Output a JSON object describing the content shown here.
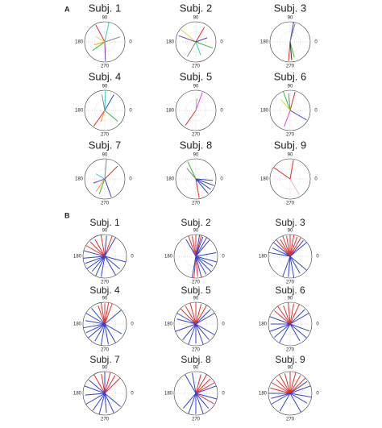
{
  "panel_labels": [
    "A",
    "B"
  ],
  "chart_data": [
    {
      "type": "polar",
      "title": "Subj. 1",
      "thetaticks": [
        90,
        180,
        270,
        0
      ],
      "rlim": [
        0,
        1
      ],
      "series": [
        {
          "color": "#33cccc",
          "angles": [
            78
          ],
          "lengths": [
            1.0
          ]
        },
        {
          "color": "#e03030",
          "angles": [
            118
          ],
          "lengths": [
            0.95
          ]
        },
        {
          "color": "#888888",
          "angles": [
            18
          ],
          "lengths": [
            0.8
          ]
        },
        {
          "color": "#7a3fb0",
          "angles": [
            272
          ],
          "lengths": [
            0.95
          ]
        },
        {
          "color": "#33bb33",
          "angles": [
            215
          ],
          "lengths": [
            0.75
          ]
        },
        {
          "color": "#ff9900",
          "angles": [
            195
          ],
          "lengths": [
            0.55
          ]
        },
        {
          "color": "#dddd33",
          "angles": [
            150
          ],
          "lengths": [
            0.5
          ]
        }
      ]
    },
    {
      "type": "polar",
      "title": "Subj. 2",
      "thetaticks": [
        90,
        180,
        270,
        0
      ],
      "rlim": [
        0,
        1
      ],
      "series": [
        {
          "color": "#dddd33",
          "angles": [
            140
          ],
          "lengths": [
            0.95
          ]
        },
        {
          "color": "#7a3fb0",
          "angles": [
            160
          ],
          "lengths": [
            0.9
          ]
        },
        {
          "color": "#e03030",
          "angles": [
            60
          ],
          "lengths": [
            0.85
          ]
        },
        {
          "color": "#33bb33",
          "angles": [
            340
          ],
          "lengths": [
            0.9
          ]
        },
        {
          "color": "#888888",
          "angles": [
            240
          ],
          "lengths": [
            0.85
          ]
        },
        {
          "color": "#33cccc",
          "angles": [
            290
          ],
          "lengths": [
            0.7
          ]
        },
        {
          "color": "#3344cc",
          "angles": [
            20
          ],
          "lengths": [
            0.6
          ]
        }
      ]
    },
    {
      "type": "polar",
      "title": "Subj. 3",
      "thetaticks": [
        90,
        180,
        270,
        0
      ],
      "rlim": [
        0,
        1
      ],
      "series": [
        {
          "color": "#3344cc",
          "angles": [
            80
          ],
          "lengths": [
            1.0
          ]
        },
        {
          "color": "#888888",
          "angles": [
            75
          ],
          "lengths": [
            0.95
          ]
        },
        {
          "color": "#e03030",
          "angles": [
            265
          ],
          "lengths": [
            0.95
          ]
        },
        {
          "color": "#33bb33",
          "angles": [
            285
          ],
          "lengths": [
            0.8
          ]
        },
        {
          "color": "#333333",
          "angles": [
            275
          ],
          "lengths": [
            0.9
          ]
        }
      ]
    },
    {
      "type": "polar",
      "title": "Subj. 4",
      "thetaticks": [
        90,
        180,
        270,
        0
      ],
      "rlim": [
        0,
        1
      ],
      "series": [
        {
          "color": "#33cccc",
          "angles": [
            88
          ],
          "lengths": [
            1.0
          ]
        },
        {
          "color": "#3344cc",
          "angles": [
            60
          ],
          "lengths": [
            0.9
          ]
        },
        {
          "color": "#888888",
          "angles": [
            100
          ],
          "lengths": [
            0.8
          ]
        },
        {
          "color": "#e03030",
          "angles": [
            235
          ],
          "lengths": [
            0.95
          ]
        },
        {
          "color": "#33bb33",
          "angles": [
            320
          ],
          "lengths": [
            0.85
          ]
        },
        {
          "color": "#ff9900",
          "angles": [
            250
          ],
          "lengths": [
            0.6
          ]
        }
      ]
    },
    {
      "type": "polar",
      "title": "Subj. 5",
      "thetaticks": [
        90,
        180,
        270,
        0
      ],
      "rlim": [
        0,
        1
      ],
      "series": [
        {
          "color": "#e040e0",
          "angles": [
            70
          ],
          "lengths": [
            0.95
          ]
        },
        {
          "color": "#e03030",
          "angles": [
            235
          ],
          "lengths": [
            0.9
          ]
        },
        {
          "color": "#aaaaaa",
          "angles": [
            85
          ],
          "lengths": [
            0.6
          ]
        }
      ]
    },
    {
      "type": "polar",
      "title": "Subj. 6",
      "thetaticks": [
        90,
        180,
        270,
        0
      ],
      "rlim": [
        0,
        1
      ],
      "series": [
        {
          "color": "#33bb33",
          "angles": [
            110
          ],
          "lengths": [
            1.0
          ]
        },
        {
          "color": "#e03030",
          "angles": [
            75
          ],
          "lengths": [
            0.95
          ]
        },
        {
          "color": "#888888",
          "angles": [
            95
          ],
          "lengths": [
            0.85
          ]
        },
        {
          "color": "#3344cc",
          "angles": [
            330
          ],
          "lengths": [
            0.95
          ]
        },
        {
          "color": "#e040e0",
          "angles": [
            250
          ],
          "lengths": [
            0.85
          ]
        },
        {
          "color": "#dddd33",
          "angles": [
            130
          ],
          "lengths": [
            0.7
          ]
        }
      ]
    },
    {
      "type": "polar",
      "title": "Subj. 7",
      "thetaticks": [
        90,
        180,
        270,
        0
      ],
      "rlim": [
        0,
        1
      ],
      "series": [
        {
          "color": "#888888",
          "angles": [
            85
          ],
          "lengths": [
            1.0
          ]
        },
        {
          "color": "#e03030",
          "angles": [
            45
          ],
          "lengths": [
            0.9
          ]
        },
        {
          "color": "#3344cc",
          "angles": [
            290
          ],
          "lengths": [
            0.95
          ]
        },
        {
          "color": "#33bb33",
          "angles": [
            250
          ],
          "lengths": [
            0.8
          ]
        },
        {
          "color": "#ff9900",
          "angles": [
            235
          ],
          "lengths": [
            0.75
          ]
        },
        {
          "color": "#7a3fb0",
          "angles": [
            200
          ],
          "lengths": [
            0.6
          ]
        },
        {
          "color": "#33cccc",
          "angles": [
            150
          ],
          "lengths": [
            0.5
          ]
        }
      ]
    },
    {
      "type": "polar",
      "title": "Subj. 8",
      "thetaticks": [
        90,
        180,
        270,
        0
      ],
      "rlim": [
        0,
        1
      ],
      "series": [
        {
          "color": "#33bb33",
          "angles": [
            115
          ],
          "lengths": [
            0.95
          ]
        },
        {
          "color": "#e03030",
          "angles": [
            280
          ],
          "lengths": [
            0.95
          ]
        },
        {
          "color": "#3344cc",
          "angles": [
            310,
            325,
            340,
            355
          ],
          "lengths": [
            0.95,
            0.9,
            0.95,
            0.85
          ]
        },
        {
          "color": "#888888",
          "angles": [
            130
          ],
          "lengths": [
            0.7
          ]
        }
      ]
    },
    {
      "type": "polar",
      "title": "Subj. 9",
      "thetaticks": [
        90,
        180,
        270,
        0
      ],
      "rlim": [
        0,
        1
      ],
      "series": [
        {
          "color": "#e03030",
          "angles": [
            145,
            80
          ],
          "lengths": [
            1.0,
            0.95
          ]
        },
        {
          "color": "#f0b0d0",
          "angles": [
            300
          ],
          "lengths": [
            0.9
          ]
        }
      ]
    },
    {
      "type": "polar",
      "title": "Subj. 1",
      "thetaticks": [
        90,
        180,
        270,
        0
      ],
      "rlim": [
        0,
        1
      ],
      "series": [
        {
          "color": "#e03030",
          "angles": [
            70,
            100,
            120,
            135,
            150
          ],
          "lengths": [
            1.0,
            1.0,
            0.9,
            0.95,
            1.0
          ]
        },
        {
          "color": "#3344cc",
          "angles": [
            60,
            85,
            165,
            185,
            200,
            215,
            230,
            245,
            260,
            300,
            320,
            345
          ],
          "lengths": [
            1.0,
            0.95,
            1.0,
            1.0,
            0.95,
            1.0,
            0.9,
            1.0,
            0.95,
            1.0,
            0.9,
            1.0
          ]
        }
      ]
    },
    {
      "type": "polar",
      "title": "Subj. 2",
      "thetaticks": [
        90,
        180,
        270,
        0
      ],
      "rlim": [
        0,
        1
      ],
      "series": [
        {
          "color": "#e03030",
          "angles": [
            75,
            90,
            100,
            110,
            265,
            275
          ],
          "lengths": [
            1.0,
            1.0,
            0.95,
            1.0,
            1.0,
            0.95
          ]
        },
        {
          "color": "#3344cc",
          "angles": [
            50,
            60,
            70,
            80,
            120,
            260,
            285,
            300,
            315,
            330,
            345,
            10
          ],
          "lengths": [
            1.0,
            1.0,
            0.95,
            1.0,
            0.9,
            1.0,
            1.0,
            0.95,
            1.0,
            0.9,
            1.0,
            0.95
          ]
        }
      ]
    },
    {
      "type": "polar",
      "title": "Subj. 3",
      "thetaticks": [
        90,
        180,
        270,
        0
      ],
      "rlim": [
        0,
        1
      ],
      "series": [
        {
          "color": "#e03030",
          "angles": [
            60,
            70,
            80,
            90,
            100,
            110,
            120,
            130
          ],
          "lengths": [
            1.0,
            0.95,
            1.0,
            1.0,
            0.95,
            1.0,
            0.9,
            1.0
          ]
        },
        {
          "color": "#3344cc",
          "angles": [
            40,
            50,
            140,
            155,
            170,
            250,
            265,
            280,
            300,
            320
          ],
          "lengths": [
            1.0,
            0.95,
            1.0,
            0.9,
            1.0,
            1.0,
            0.95,
            1.0,
            0.9,
            1.0
          ]
        }
      ]
    },
    {
      "type": "polar",
      "title": "Subj. 4",
      "thetaticks": [
        90,
        180,
        270,
        0
      ],
      "rlim": [
        0,
        1
      ],
      "series": [
        {
          "color": "#e03030",
          "angles": [
            70,
            80,
            90,
            100,
            110
          ],
          "lengths": [
            1.0,
            1.0,
            0.95,
            1.0,
            0.9
          ]
        },
        {
          "color": "#3344cc",
          "angles": [
            40,
            130,
            150,
            170,
            190,
            205,
            220,
            240,
            260,
            280,
            300,
            330
          ],
          "lengths": [
            1.0,
            0.95,
            1.0,
            0.9,
            1.0,
            0.95,
            1.0,
            0.9,
            1.0,
            0.95,
            1.0,
            0.9
          ]
        }
      ]
    },
    {
      "type": "polar",
      "title": "Subj. 5",
      "thetaticks": [
        90,
        180,
        270,
        0
      ],
      "rlim": [
        0,
        1
      ],
      "series": [
        {
          "color": "#e03030",
          "angles": [
            60,
            75,
            90,
            105,
            120,
            135
          ],
          "lengths": [
            1.0,
            0.95,
            1.0,
            1.0,
            0.95,
            1.0
          ]
        },
        {
          "color": "#3344cc",
          "angles": [
            30,
            45,
            150,
            165,
            200,
            230,
            250,
            270,
            290,
            310,
            330
          ],
          "lengths": [
            1.0,
            0.95,
            1.0,
            0.9,
            1.0,
            0.95,
            1.0,
            0.9,
            1.0,
            0.95,
            1.0
          ]
        }
      ]
    },
    {
      "type": "polar",
      "title": "Subj. 6",
      "thetaticks": [
        90,
        180,
        270,
        0
      ],
      "rlim": [
        0,
        1
      ],
      "series": [
        {
          "color": "#e03030",
          "angles": [
            65,
            80,
            95,
            110,
            125,
            140
          ],
          "lengths": [
            1.0,
            0.95,
            1.0,
            0.9,
            1.0,
            0.95
          ]
        },
        {
          "color": "#3344cc",
          "angles": [
            30,
            45,
            160,
            180,
            200,
            220,
            240,
            300,
            320,
            340
          ],
          "lengths": [
            1.0,
            0.95,
            1.0,
            0.9,
            1.0,
            0.95,
            1.0,
            0.9,
            1.0,
            0.95
          ]
        }
      ]
    },
    {
      "type": "polar",
      "title": "Subj. 7",
      "thetaticks": [
        90,
        180,
        270,
        0
      ],
      "rlim": [
        0,
        1
      ],
      "series": [
        {
          "color": "#e03030",
          "angles": [
            45,
            60,
            75,
            100,
            120
          ],
          "lengths": [
            1.0,
            0.95,
            1.0,
            0.9,
            1.0
          ]
        },
        {
          "color": "#3344cc",
          "angles": [
            90,
            140,
            160,
            185,
            210,
            235,
            255,
            275,
            295,
            320
          ],
          "lengths": [
            1.0,
            0.95,
            1.0,
            0.9,
            1.0,
            0.95,
            1.0,
            0.9,
            1.0,
            0.95
          ]
        }
      ]
    },
    {
      "type": "polar",
      "title": "Subj. 8",
      "thetaticks": [
        90,
        180,
        270,
        0
      ],
      "rlim": [
        0,
        1
      ],
      "series": [
        {
          "color": "#e03030",
          "angles": [
            30,
            45,
            60,
            75,
            330
          ],
          "lengths": [
            1.0,
            0.95,
            1.0,
            0.9,
            0.95
          ]
        },
        {
          "color": "#3344cc",
          "angles": [
            20,
            100,
            120,
            230,
            250,
            270,
            290,
            310,
            345
          ],
          "lengths": [
            1.0,
            0.95,
            1.0,
            0.9,
            1.0,
            0.95,
            1.0,
            0.9,
            1.0
          ]
        }
      ]
    },
    {
      "type": "polar",
      "title": "Subj. 9",
      "thetaticks": [
        90,
        180,
        270,
        0
      ],
      "rlim": [
        0,
        1
      ],
      "series": [
        {
          "color": "#e03030",
          "angles": [
            45,
            60,
            75,
            90,
            105,
            120,
            135,
            150,
            165
          ],
          "lengths": [
            1.0,
            0.95,
            1.0,
            1.0,
            0.95,
            1.0,
            0.9,
            1.0,
            0.95
          ]
        },
        {
          "color": "#3344cc",
          "angles": [
            20,
            35,
            180,
            195,
            210,
            240,
            300,
            330,
            350
          ],
          "lengths": [
            1.0,
            0.95,
            1.0,
            0.9,
            1.0,
            0.95,
            1.0,
            0.9,
            1.0
          ]
        }
      ]
    }
  ]
}
